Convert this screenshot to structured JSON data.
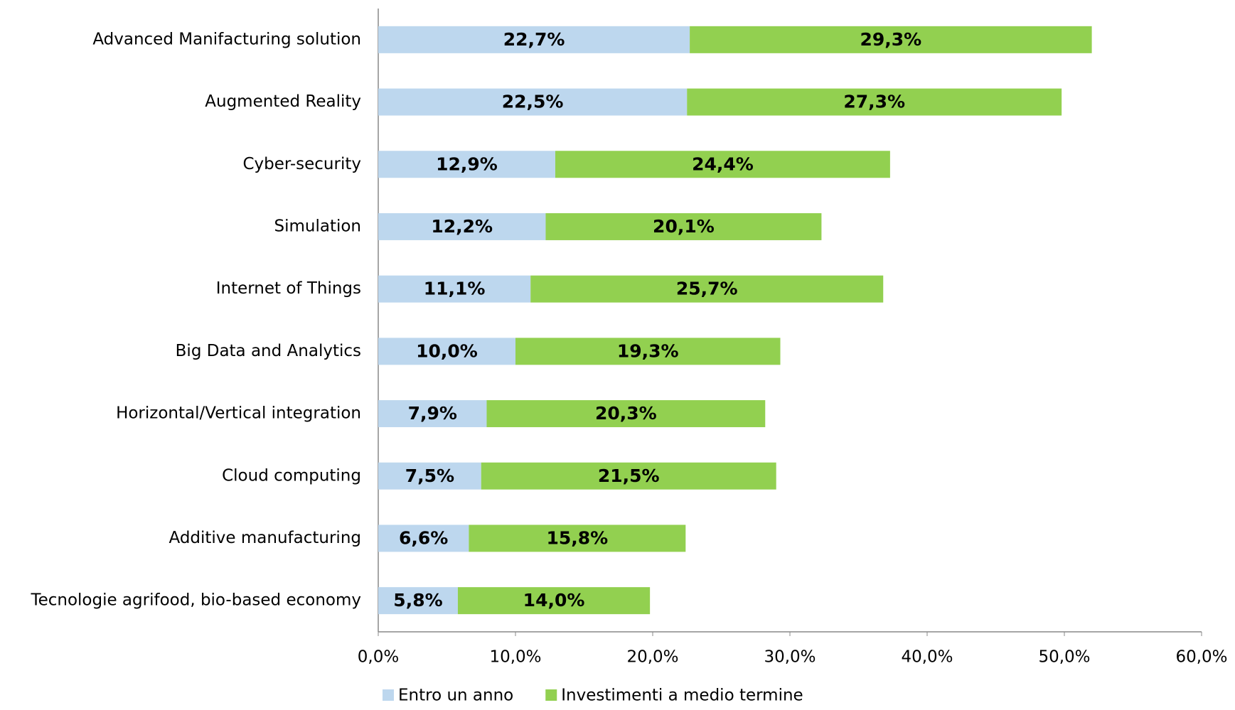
{
  "chart_data": {
    "type": "stacked_barh",
    "categories": [
      "Advanced Manifacturing solution",
      "Augmented Reality",
      "Cyber-security",
      "Simulation",
      "Internet of Things",
      "Big Data and Analytics",
      "Horizontal/Vertical integration",
      "Cloud computing",
      "Additive manufacturing",
      "Tecnologie agrifood, bio-based economy"
    ],
    "series": [
      {
        "name": "Entro un anno",
        "color": "#bdd7ee",
        "values": [
          22.7,
          22.5,
          12.9,
          12.2,
          11.1,
          10.0,
          7.9,
          7.5,
          6.6,
          5.8
        ],
        "value_labels": [
          "22,7%",
          "22,5%",
          "12,9%",
          "12,2%",
          "11,1%",
          "10,0%",
          "7,9%",
          "7,5%",
          "6,6%",
          "5,8%"
        ]
      },
      {
        "name": "Investimenti a medio termine",
        "color": "#92d050",
        "values": [
          29.3,
          27.3,
          24.4,
          20.1,
          25.7,
          19.3,
          20.3,
          21.5,
          15.8,
          14.0
        ],
        "value_labels": [
          "29,3%",
          "27,3%",
          "24,4%",
          "20,1%",
          "25,7%",
          "19,3%",
          "20,3%",
          "21,5%",
          "15,8%",
          "14,0%"
        ]
      }
    ],
    "xlim": [
      0,
      60
    ],
    "xticks": [
      {
        "value": 0,
        "label": "0,0%"
      },
      {
        "value": 10,
        "label": "10,0%"
      },
      {
        "value": 20,
        "label": "20,0%"
      },
      {
        "value": 30,
        "label": "30,0%"
      },
      {
        "value": 40,
        "label": "40,0%"
      },
      {
        "value": 50,
        "label": "50,0%"
      },
      {
        "value": 60,
        "label": "60,0%"
      }
    ],
    "legend": "bottom"
  }
}
